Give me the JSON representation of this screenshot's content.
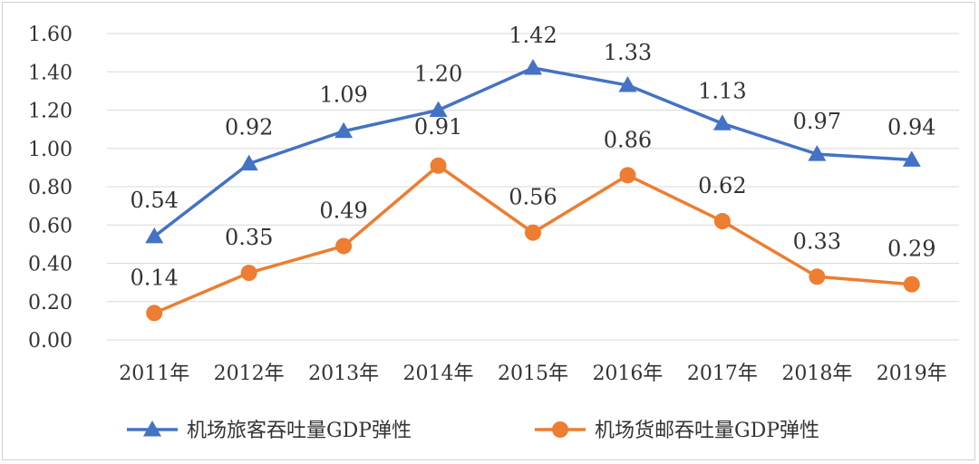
{
  "chart_data": {
    "type": "line",
    "title": "",
    "xlabel": "",
    "ylabel": "",
    "categories": [
      "2011年",
      "2012年",
      "2013年",
      "2014年",
      "2015年",
      "2016年",
      "2017年",
      "2018年",
      "2019年"
    ],
    "ylim": [
      0,
      1.6
    ],
    "yticks": [
      "0.00",
      "0.20",
      "0.40",
      "0.60",
      "0.80",
      "1.00",
      "1.20",
      "1.40",
      "1.60"
    ],
    "grid": true,
    "legend_position": "bottom",
    "series": [
      {
        "name": "机场旅客吞吐量GDP弹性",
        "color": "#4472c4",
        "marker": "triangle",
        "values": [
          0.54,
          0.92,
          1.09,
          1.2,
          1.42,
          1.33,
          1.13,
          0.97,
          0.94
        ],
        "labels": [
          "0.54",
          "0.92",
          "1.09",
          "1.20",
          "1.42",
          "1.33",
          "1.13",
          "0.97",
          "0.94"
        ]
      },
      {
        "name": "机场货邮吞吐量GDP弹性",
        "color": "#ed7d31",
        "marker": "circle",
        "values": [
          0.14,
          0.35,
          0.49,
          0.91,
          0.56,
          0.86,
          0.62,
          0.33,
          0.29
        ],
        "labels": [
          "0.14",
          "0.35",
          "0.49",
          "0.91",
          "0.56",
          "0.86",
          "0.62",
          "0.33",
          "0.29"
        ]
      }
    ]
  }
}
